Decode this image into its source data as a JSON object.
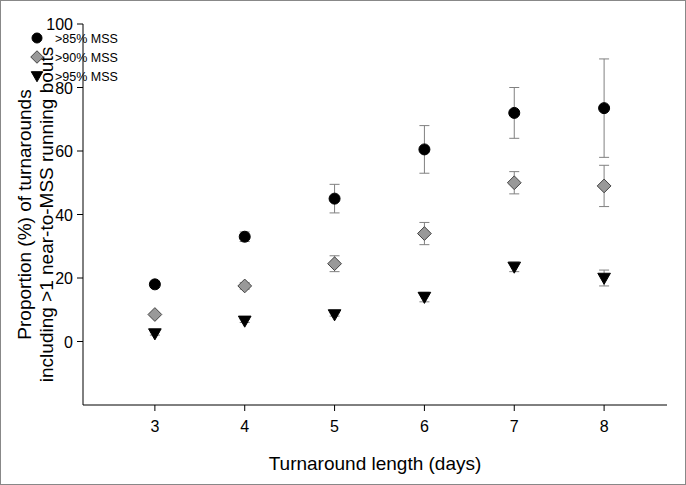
{
  "chart_data": {
    "type": "scatter",
    "x_label": "Turnaround length (days)",
    "y_label": [
      "Proportion (%) of turnarounds",
      "including >1 near-to-MSS running bouts"
    ],
    "x": [
      3,
      4,
      5,
      6,
      7,
      8
    ],
    "series": [
      {
        "name": ">85% MSS",
        "color": "#000000",
        "marker": "circle",
        "values": [
          18,
          33,
          45,
          60.5,
          72,
          73.5
        ],
        "errors": [
          1,
          1.5,
          4.5,
          7.5,
          8,
          15.5
        ]
      },
      {
        "name": ">90% MSS",
        "color": "#999999",
        "marker": "diamond",
        "values": [
          8.5,
          17.5,
          24.5,
          34,
          50,
          49
        ],
        "errors": [
          0.5,
          1,
          2.5,
          3.5,
          3.5,
          6.5
        ]
      },
      {
        "name": ">95% MSS",
        "color": "#000000",
        "marker": "triangle_down",
        "values": [
          2.5,
          6.5,
          8.5,
          14,
          23.5,
          20
        ],
        "errors": [
          0.5,
          0.5,
          0.5,
          1.5,
          1.5,
          2.5
        ]
      }
    ],
    "xlim": [
      2.2,
      8.7
    ],
    "xticks": [
      3,
      4,
      5,
      6,
      7,
      8
    ],
    "ylim": [
      -20,
      100
    ],
    "yticks": [
      0,
      20,
      40,
      60,
      80,
      100
    ],
    "grid": false,
    "legend": "upper left"
  }
}
